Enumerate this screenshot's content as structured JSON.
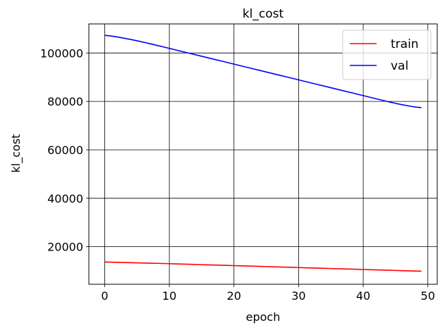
{
  "chart_data": {
    "type": "line",
    "title": "kl_cost",
    "xlabel": "epoch",
    "ylabel": "kl_cost",
    "xlim": [
      -2.45,
      51.45
    ],
    "ylim": [
      4500,
      112000
    ],
    "xticks": [
      0,
      10,
      20,
      30,
      40,
      50
    ],
    "yticks": [
      20000,
      40000,
      60000,
      80000,
      100000
    ],
    "grid": true,
    "legend_position": "top-right",
    "x": [
      0,
      1,
      2,
      3,
      4,
      5,
      6,
      7,
      8,
      9,
      10,
      11,
      12,
      13,
      14,
      15,
      16,
      17,
      18,
      19,
      20,
      21,
      22,
      23,
      24,
      25,
      26,
      27,
      28,
      29,
      30,
      31,
      32,
      33,
      34,
      35,
      36,
      37,
      38,
      39,
      40,
      41,
      42,
      43,
      44,
      45,
      46,
      47,
      48,
      49
    ],
    "series": [
      {
        "name": "train",
        "color": "#ff0000",
        "values": [
          13700,
          13630,
          13560,
          13490,
          13420,
          13350,
          13280,
          13210,
          13140,
          13070,
          13000,
          12920,
          12840,
          12760,
          12680,
          12600,
          12520,
          12440,
          12360,
          12280,
          12200,
          12120,
          12040,
          11960,
          11880,
          11800,
          11720,
          11640,
          11560,
          11480,
          11400,
          11320,
          11240,
          11160,
          11080,
          11000,
          10920,
          10840,
          10760,
          10680,
          10600,
          10520,
          10440,
          10360,
          10280,
          10200,
          10120,
          10040,
          9960,
          9880
        ]
      },
      {
        "name": "val",
        "color": "#0000ff",
        "values": [
          107300,
          107000,
          106600,
          106100,
          105600,
          105050,
          104450,
          103850,
          103200,
          102550,
          101900,
          101250,
          100600,
          99950,
          99300,
          98650,
          98000,
          97350,
          96700,
          96050,
          95400,
          94750,
          94100,
          93450,
          92800,
          92150,
          91500,
          90850,
          90200,
          89550,
          88900,
          88250,
          87600,
          86950,
          86300,
          85650,
          85000,
          84350,
          83700,
          83050,
          82400,
          81750,
          81100,
          80450,
          79800,
          79200,
          78650,
          78150,
          77700,
          77450
        ]
      }
    ]
  }
}
